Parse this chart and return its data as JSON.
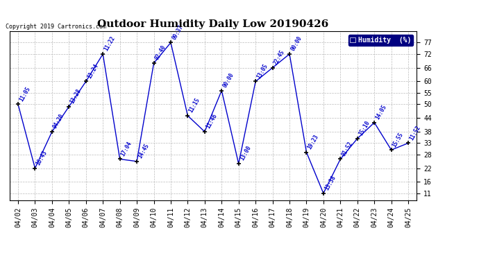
{
  "title": "Outdoor Humidity Daily Low 20190426",
  "copyright": "Copyright 2019 Cartronics.com",
  "legend_label": "Humidity  (%)",
  "background_color": "#ffffff",
  "plot_bg_color": "#ffffff",
  "line_color": "#0000cc",
  "marker_color": "#000000",
  "grid_color": "#bbbbbb",
  "dates": [
    "04/02",
    "04/03",
    "04/04",
    "04/05",
    "04/06",
    "04/07",
    "04/08",
    "04/09",
    "04/10",
    "04/11",
    "04/12",
    "04/13",
    "04/14",
    "04/15",
    "04/16",
    "04/17",
    "04/18",
    "04/19",
    "04/20",
    "04/21",
    "04/22",
    "04/23",
    "04/24",
    "04/25"
  ],
  "values": [
    50,
    22,
    38,
    49,
    60,
    72,
    26,
    25,
    68,
    77,
    45,
    38,
    56,
    24,
    60,
    66,
    72,
    29,
    11,
    26,
    35,
    42,
    30,
    33
  ],
  "times": [
    "11:05",
    "16:43",
    "04:20",
    "13:28",
    "13:24",
    "11:22",
    "17:04",
    "14:45",
    "02:40",
    "09:37",
    "11:15",
    "11:46",
    "00:00",
    "13:00",
    "13:05",
    "22:45",
    "00:00",
    "19:23",
    "13:38",
    "01:52",
    "15:10",
    "14:05",
    "15:55",
    "11:52"
  ],
  "ylim_min": 8,
  "ylim_max": 82,
  "yticks": [
    11,
    16,
    22,
    28,
    33,
    38,
    44,
    50,
    55,
    60,
    66,
    72,
    77
  ],
  "title_fontsize": 11,
  "tick_fontsize": 7,
  "legend_bg": "#000080",
  "legend_fg": "#ffffff"
}
